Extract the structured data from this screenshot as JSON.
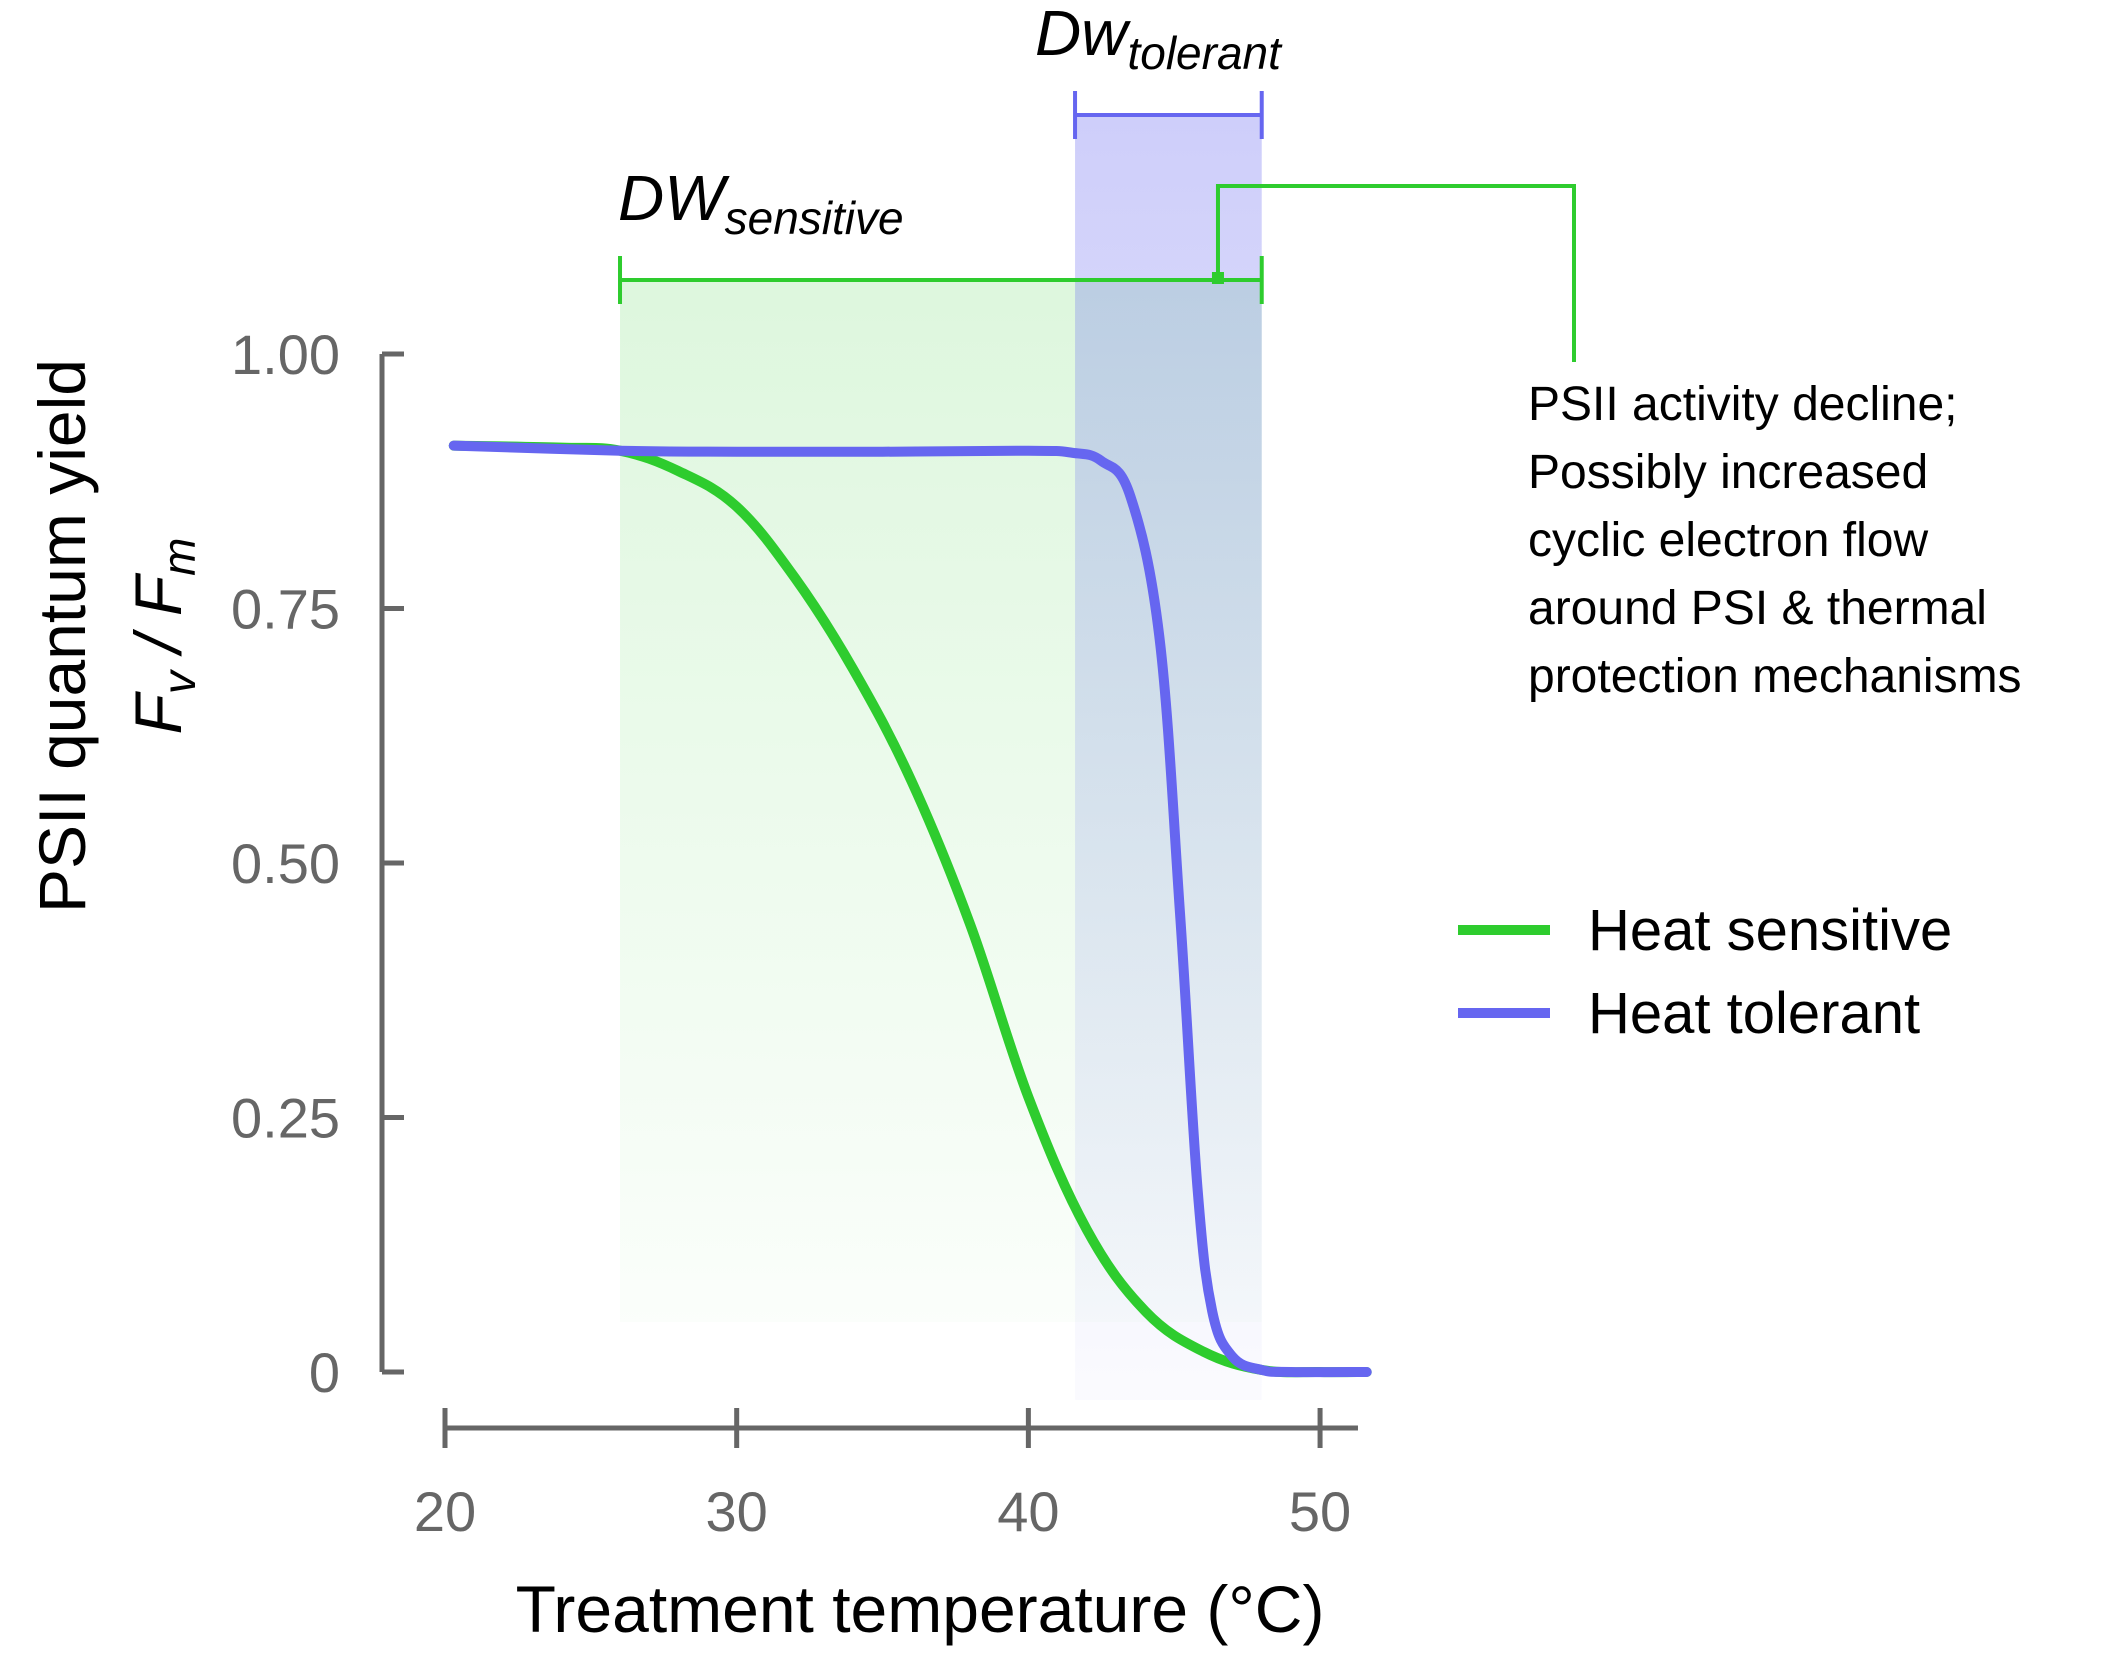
{
  "chart_data": {
    "type": "line",
    "xlabel": "Treatment temperature (°C)",
    "ylabel": {
      "line1": "PSII quantum yield",
      "fv_base": "F",
      "fv_sub": "v",
      "separator": " / ",
      "fm_base": "F",
      "fm_sub": "m"
    },
    "xlim": [
      20,
      52
    ],
    "ylim": [
      0,
      1
    ],
    "x_ticks": [
      "20",
      "30",
      "40",
      "50"
    ],
    "y_ticks": [
      "0",
      "0.25",
      "0.50",
      "0.75",
      "1.00"
    ],
    "x_tick_values": [
      20,
      30,
      40,
      50
    ],
    "y_tick_values": [
      0,
      0.25,
      0.5,
      0.75,
      1.0
    ],
    "grid": false,
    "legend_position": "right",
    "series": [
      {
        "name": "Heat sensitive",
        "color": "#2ecc2e",
        "points": [
          [
            20.3,
            0.91
          ],
          [
            24,
            0.908
          ],
          [
            26,
            0.905
          ],
          [
            28,
            0.885
          ],
          [
            30,
            0.85
          ],
          [
            32,
            0.78
          ],
          [
            34,
            0.69
          ],
          [
            36,
            0.58
          ],
          [
            38,
            0.44
          ],
          [
            40,
            0.27
          ],
          [
            42,
            0.14
          ],
          [
            44,
            0.06
          ],
          [
            46,
            0.02
          ],
          [
            48,
            0.002
          ],
          [
            50,
            0.0
          ],
          [
            51.6,
            0.0
          ]
        ]
      },
      {
        "name": "Heat tolerant",
        "color": "#6666f0",
        "points": [
          [
            20.3,
            0.91
          ],
          [
            26,
            0.905
          ],
          [
            30,
            0.904
          ],
          [
            35,
            0.904
          ],
          [
            40,
            0.905
          ],
          [
            41.5,
            0.903
          ],
          [
            42.5,
            0.895
          ],
          [
            43.5,
            0.86
          ],
          [
            44.5,
            0.72
          ],
          [
            45.2,
            0.45
          ],
          [
            45.8,
            0.18
          ],
          [
            46.3,
            0.06
          ],
          [
            47,
            0.015
          ],
          [
            48,
            0.002
          ],
          [
            49,
            0.0
          ],
          [
            51.6,
            0.0
          ]
        ]
      }
    ],
    "regions": [
      {
        "label_main": "DW",
        "label_sub": "sensitive",
        "x": [
          26,
          48
        ],
        "color": "#2ecc2e"
      },
      {
        "label_main": "Dw",
        "label_sub": "tolerant",
        "x": [
          41.6,
          48
        ],
        "color": "#6666f0"
      }
    ],
    "annotation": {
      "lines": [
        "PSII activity decline;",
        "Possibly increased",
        "cyclic electron flow",
        "around PSI & thermal",
        "protection mechanisms"
      ]
    },
    "legend": [
      {
        "label": "Heat sensitive",
        "color": "#2ecc2e"
      },
      {
        "label": "Heat tolerant",
        "color": "#6666f0"
      }
    ]
  }
}
